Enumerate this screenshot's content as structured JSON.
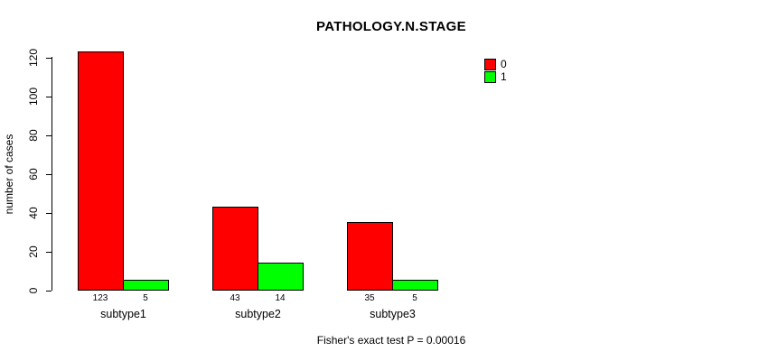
{
  "chart_data": {
    "type": "bar",
    "title": "PATHOLOGY.N.STAGE",
    "xlabel": "",
    "ylabel": "number of cases",
    "categories": [
      "subtype1",
      "subtype2",
      "subtype3"
    ],
    "series": [
      {
        "name": "0",
        "color": "#ff0000",
        "values": [
          123,
          43,
          35
        ]
      },
      {
        "name": "1",
        "color": "#00ff00",
        "values": [
          5,
          14,
          5
        ]
      }
    ],
    "yticks": [
      0,
      20,
      40,
      60,
      80,
      100,
      120
    ],
    "ylim": [
      0,
      129
    ],
    "grid": false,
    "legend_position": "top-right",
    "bar_value_labels_shown": true,
    "annotation": "Fisher's exact test P = 0.00016"
  }
}
